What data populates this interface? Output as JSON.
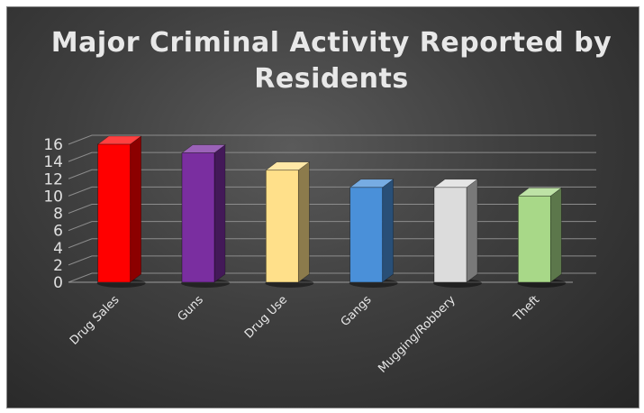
{
  "chart_data": {
    "type": "bar",
    "title": "Major Criminal Activity Reported by Residents",
    "xlabel": "",
    "ylabel": "",
    "categories": [
      "Drug Sales",
      "Guns",
      "Drug Use",
      "Gangs",
      "Mugging/Robbery",
      "Theft"
    ],
    "values": [
      16,
      15,
      13,
      11,
      11,
      10
    ],
    "ylim": [
      0,
      16
    ],
    "yticks": [
      "0",
      "2",
      "4",
      "6",
      "8",
      "10",
      "12",
      "14",
      "16"
    ],
    "grid": true,
    "legend": "none",
    "style": "3d-column",
    "colors": [
      "#ff0000",
      "#7a2ea0",
      "#ffe08a",
      "#4a90d9",
      "#dcdcdc",
      "#a8d888"
    ]
  }
}
